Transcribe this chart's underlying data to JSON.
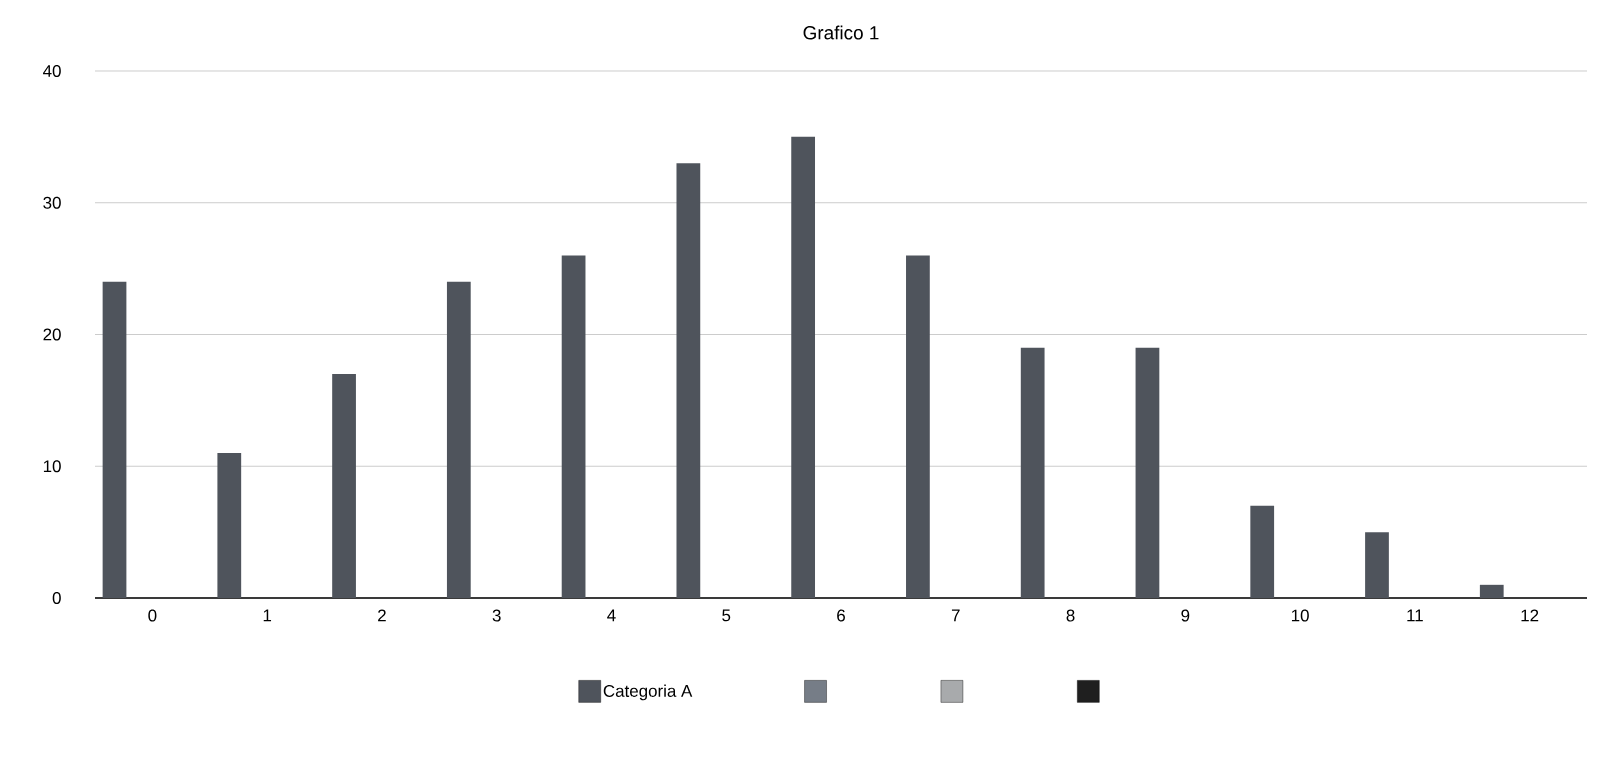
{
  "chart_data": {
    "type": "bar",
    "title": "Grafico 1",
    "categories": [
      "0",
      "1",
      "2",
      "3",
      "4",
      "5",
      "6",
      "7",
      "8",
      "9",
      "10",
      "11",
      "12"
    ],
    "series": [
      {
        "name": "Categoria A",
        "color": "#4f545c",
        "values": [
          24,
          11,
          17,
          24,
          26,
          33,
          35,
          26,
          19,
          19,
          7,
          5,
          1
        ]
      },
      {
        "color": "#767d87",
        "values": [
          null,
          null,
          null,
          null,
          null,
          null,
          null,
          null,
          null,
          null,
          null,
          null,
          null
        ]
      },
      {
        "color": "#a8aaac",
        "values": [
          null,
          null,
          null,
          null,
          null,
          null,
          null,
          null,
          null,
          null,
          null,
          null,
          null
        ]
      },
      {
        "color": "#1f1f1f",
        "values": [
          null,
          null,
          null,
          null,
          null,
          null,
          null,
          null,
          null,
          null,
          null,
          null,
          null
        ]
      }
    ],
    "ylim": [
      0,
      40
    ],
    "yticks": [
      0,
      10,
      20,
      30,
      40
    ],
    "grid": "y",
    "legend": "bottom"
  }
}
